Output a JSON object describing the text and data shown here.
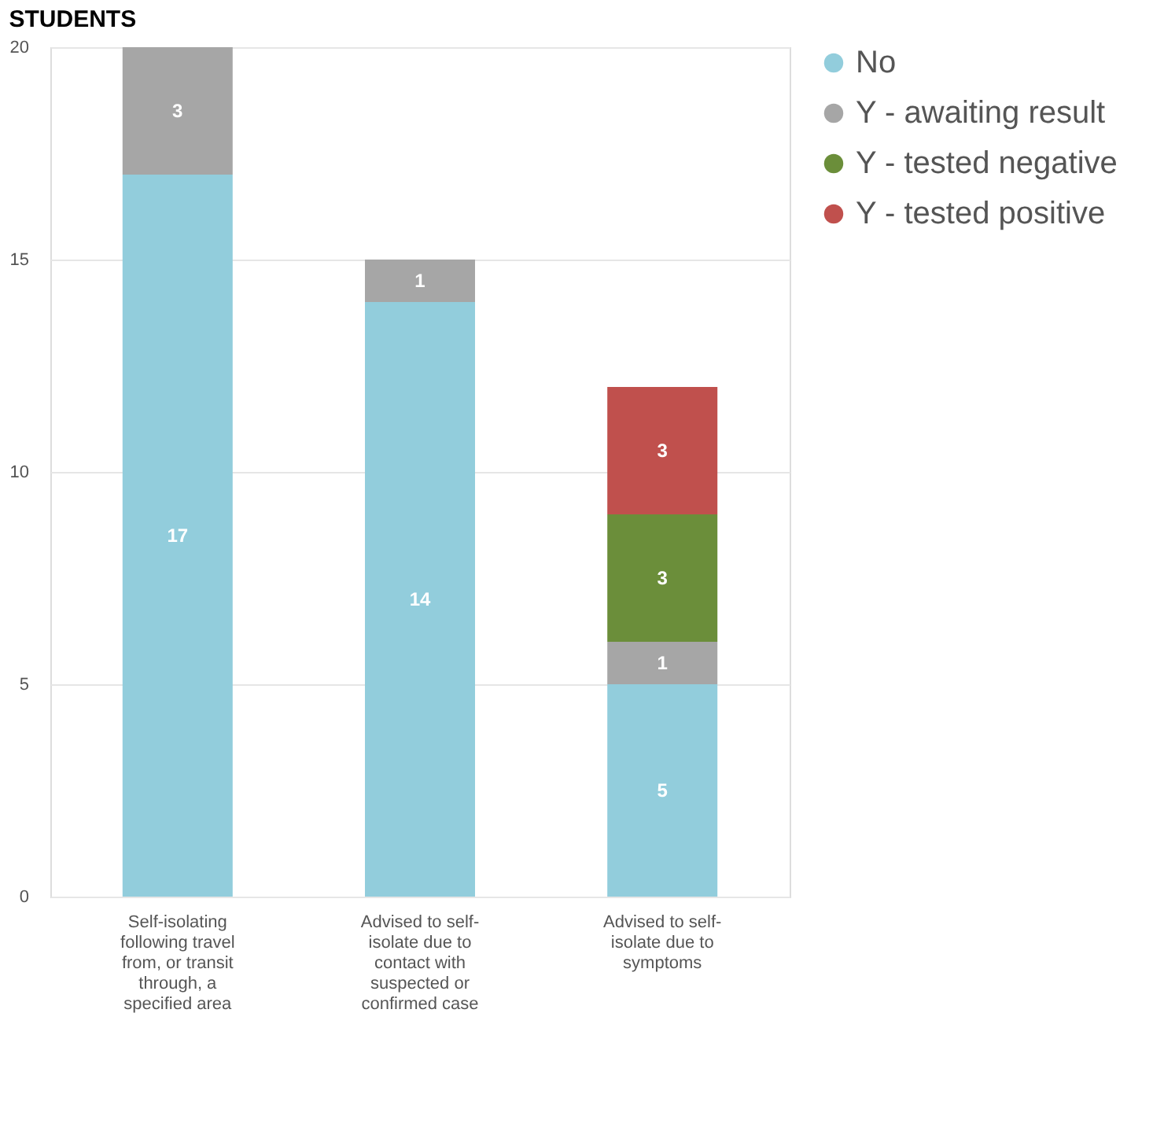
{
  "chart_data": {
    "type": "bar",
    "title": "STUDENTS",
    "stacked": true,
    "categories": [
      "Self-isolating following travel from, or transit through, a specified area",
      "Advised to self-isolate due to contact with suspected or confirmed case",
      "Advised to self-isolate due to symptoms"
    ],
    "series": [
      {
        "name": "No",
        "color": "#92cddc",
        "values": [
          17,
          14,
          5
        ]
      },
      {
        "name": "Y - awaiting result",
        "color": "#a6a6a6",
        "values": [
          3,
          1,
          1
        ]
      },
      {
        "name": "Y - tested negative",
        "color": "#6b8e3a",
        "values": [
          null,
          null,
          3
        ]
      },
      {
        "name": "Y - tested positive",
        "color": "#c0504d",
        "values": [
          null,
          null,
          3
        ]
      }
    ],
    "ylim": [
      0,
      20
    ],
    "yticks": [
      0,
      5,
      10,
      15,
      20
    ],
    "grid": "y",
    "legend": "top right",
    "data_labels": true
  }
}
